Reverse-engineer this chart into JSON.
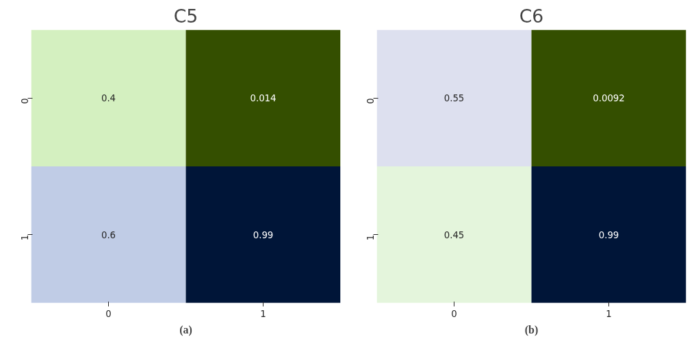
{
  "chart_data": [
    {
      "type": "heatmap",
      "title": "C5",
      "categories": [
        "0",
        "1"
      ],
      "y_categories": [
        "0",
        "1"
      ],
      "cells": [
        [
          0.4,
          0.014
        ],
        [
          0.6,
          0.99
        ]
      ],
      "colors": [
        [
          "#d4f0c0",
          "#344f00"
        ],
        [
          "#c0cce6",
          "#001538"
        ]
      ],
      "data_labels": true,
      "grid": false,
      "annotations": [
        "(a)"
      ]
    },
    {
      "type": "heatmap",
      "title": "C6",
      "categories": [
        "0",
        "1"
      ],
      "y_categories": [
        "0",
        "1"
      ],
      "cells": [
        [
          0.55,
          0.0092
        ],
        [
          0.45,
          0.99
        ]
      ],
      "colors": [
        [
          "#dde0ef",
          "#344f00"
        ],
        [
          "#e4f5dc",
          "#001538"
        ]
      ],
      "data_labels": true,
      "grid": false,
      "annotations": [
        "(b)"
      ]
    }
  ]
}
